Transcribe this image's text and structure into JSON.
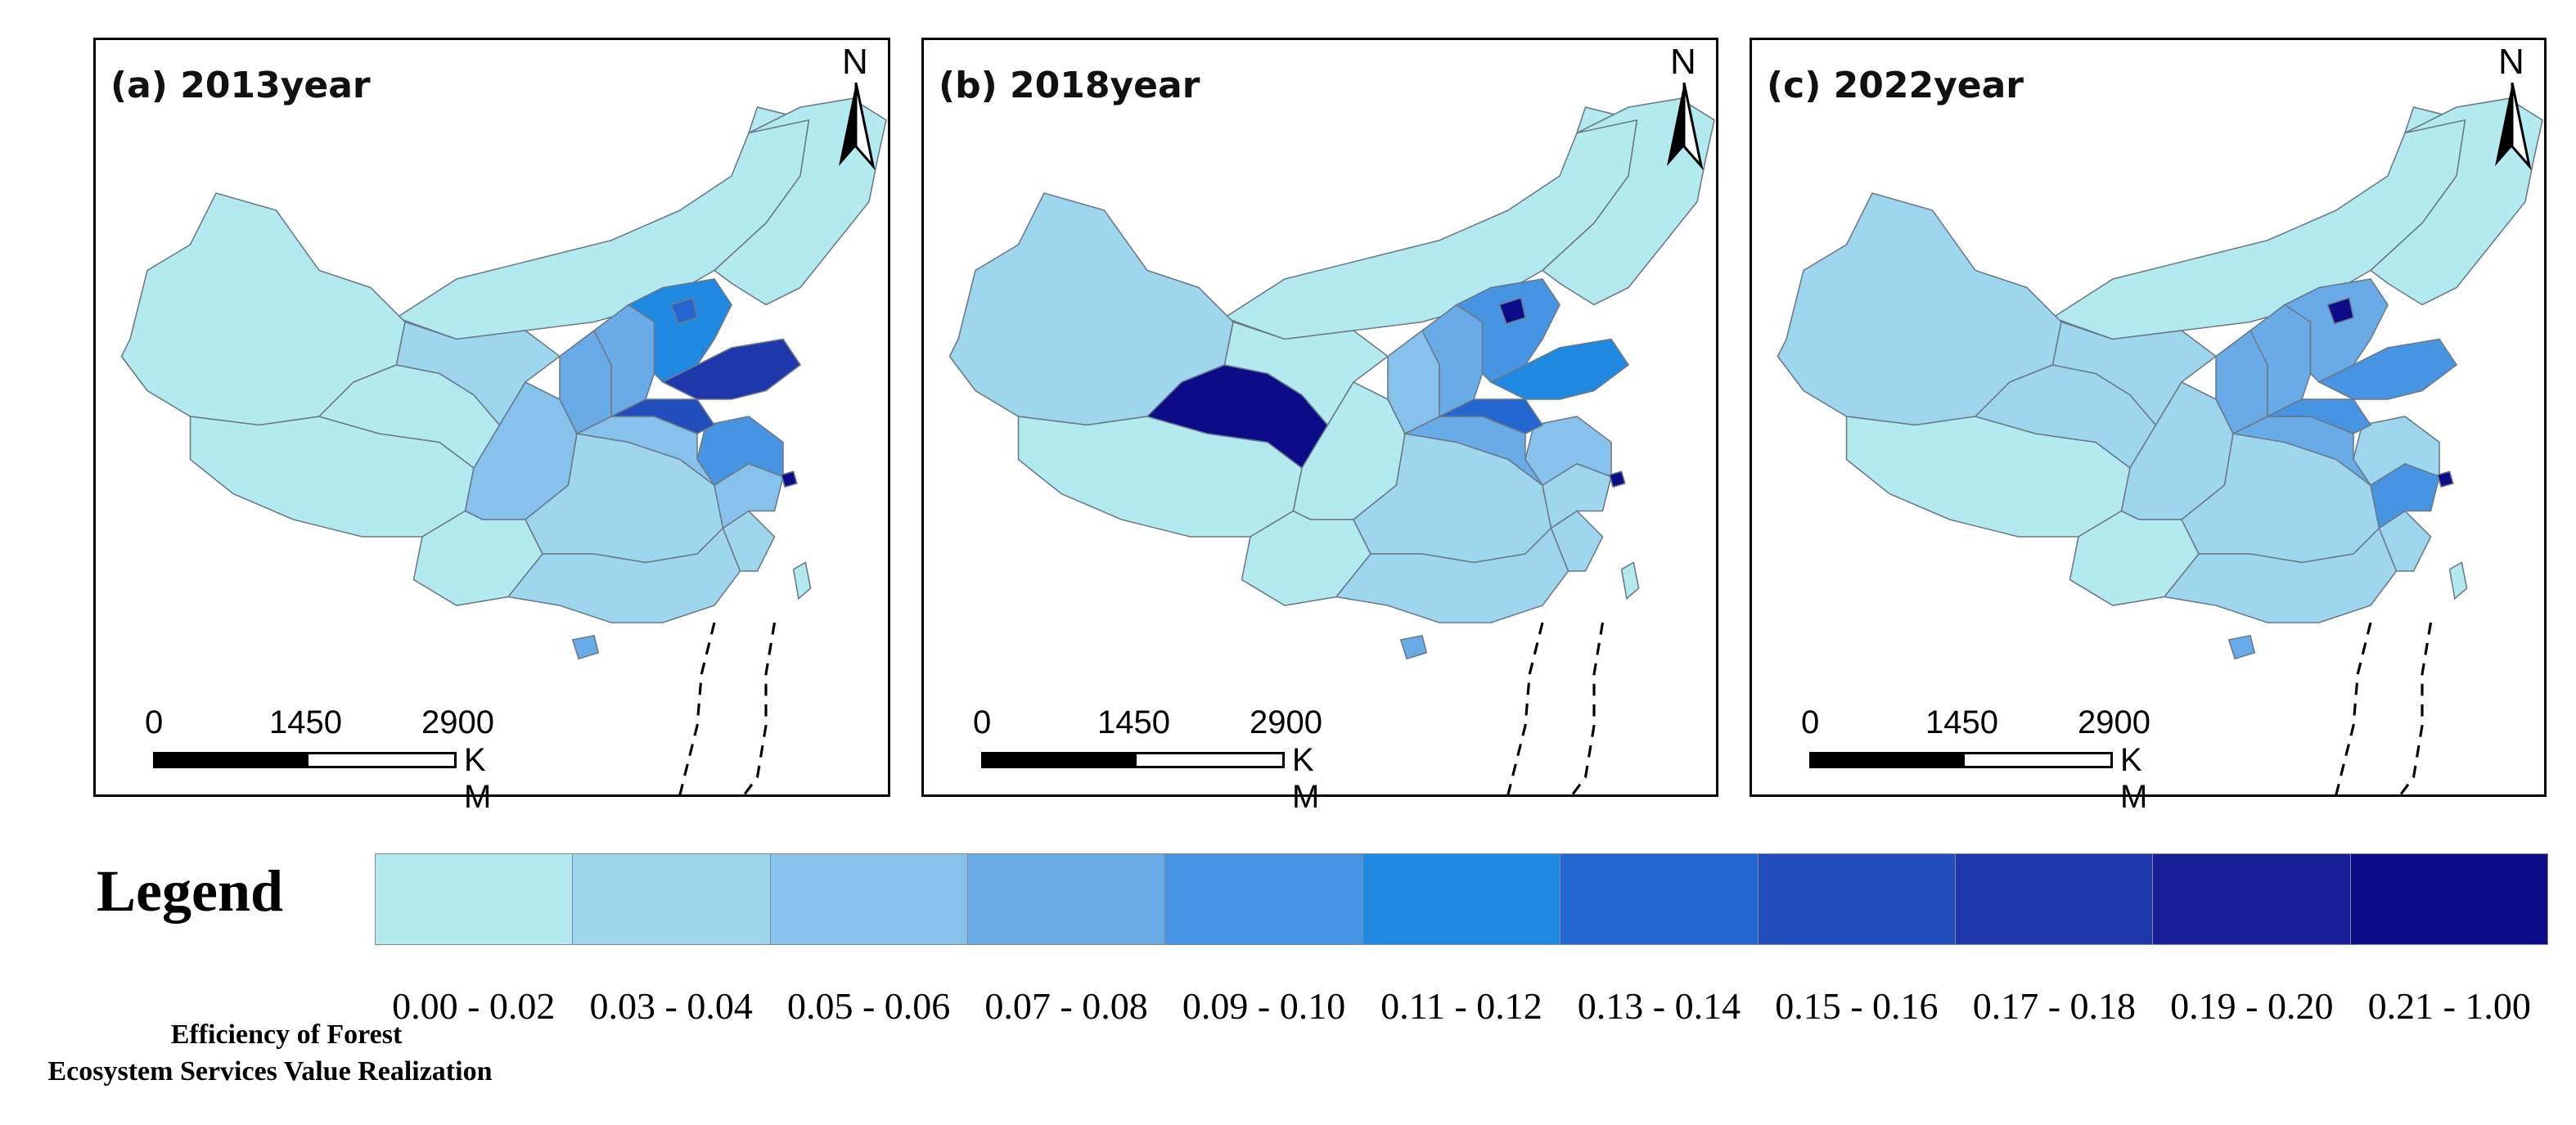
{
  "panels": [
    {
      "id": "a",
      "title": "(a) 2013year"
    },
    {
      "id": "b",
      "title": "(b) 2018year"
    },
    {
      "id": "c",
      "title": "(c) 2022year"
    }
  ],
  "north_label": "N",
  "scale": {
    "ticks": [
      "0",
      "1450",
      "2900"
    ],
    "unit": "K M"
  },
  "legend": {
    "title": "Legend",
    "caption_line1": "Efficiency of Forest",
    "caption_line2": "Ecosystem Services Value Realization",
    "classes": [
      {
        "label": "0.00 - 0.02",
        "color": "#b3eaef"
      },
      {
        "label": "0.03 - 0.04",
        "color": "#9ed6ee"
      },
      {
        "label": "0.05 - 0.06",
        "color": "#86c2ec"
      },
      {
        "label": "0.07 - 0.08",
        "color": "#68abe7"
      },
      {
        "label": "0.09 - 0.10",
        "color": "#4694e2"
      },
      {
        "label": "0.11 - 0.12",
        "color": "#1f88e0"
      },
      {
        "label": "0.13 - 0.14",
        "color": "#2466d0"
      },
      {
        "label": "0.15 - 0.16",
        "color": "#224ebd"
      },
      {
        "label": "0.17 - 0.18",
        "color": "#1e37aa"
      },
      {
        "label": "0.19 - 0.20",
        "color": "#171f96"
      },
      {
        "label": "0.21 - 1.00",
        "color": "#0c0c88"
      }
    ]
  },
  "region_classes": {
    "2013": {
      "xinjiang": 0,
      "tibet": 0,
      "qinghai": 0,
      "gansu": 1,
      "inner_mongolia": 0,
      "northeast": 0,
      "sichuan": 2,
      "yunnan": 0,
      "central": 1,
      "south": 1,
      "shaanxi": 3,
      "shanxi": 3,
      "hebei": 5,
      "beijing": 6,
      "shandong": 8,
      "henan": 7,
      "hubei": 2,
      "jiangsu": 4,
      "zhejiang": 2,
      "fujian": 1,
      "taiwan": 0,
      "hainan": 3,
      "shanghai": 10
    },
    "2018": {
      "xinjiang": 1,
      "tibet": 0,
      "qinghai": 10,
      "gansu": 0,
      "inner_mongolia": 0,
      "northeast": 0,
      "sichuan": 0,
      "yunnan": 0,
      "central": 1,
      "south": 1,
      "shaanxi": 2,
      "shanxi": 3,
      "hebei": 4,
      "beijing": 10,
      "shandong": 5,
      "henan": 6,
      "hubei": 3,
      "jiangsu": 2,
      "zhejiang": 1,
      "fujian": 1,
      "taiwan": 0,
      "hainan": 3,
      "shanghai": 10
    },
    "2022": {
      "xinjiang": 1,
      "tibet": 0,
      "qinghai": 1,
      "gansu": 1,
      "inner_mongolia": 0,
      "northeast": 0,
      "sichuan": 1,
      "yunnan": 0,
      "central": 1,
      "south": 1,
      "shaanxi": 3,
      "shanxi": 3,
      "hebei": 3,
      "beijing": 10,
      "shandong": 4,
      "henan": 4,
      "hubei": 3,
      "jiangsu": 1,
      "zhejiang": 4,
      "fujian": 1,
      "taiwan": 0,
      "hainan": 3,
      "shanghai": 10
    }
  }
}
